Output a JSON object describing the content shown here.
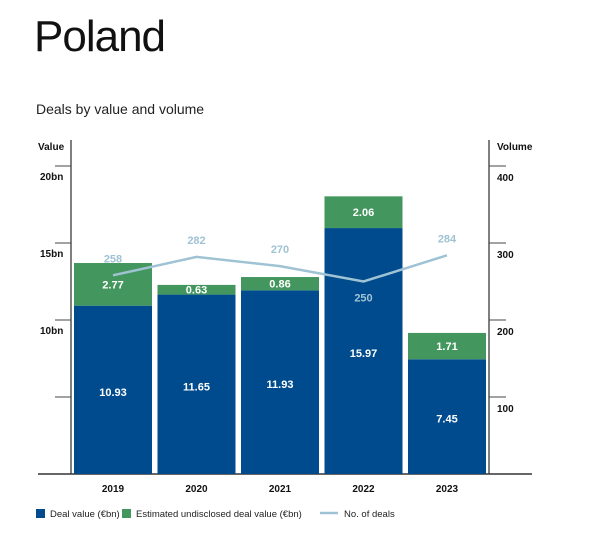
{
  "title": "Poland",
  "chart_data": {
    "type": "bar",
    "subtitle": "Deals by value and volume",
    "categories": [
      "2019",
      "2020",
      "2021",
      "2022",
      "2023"
    ],
    "series": [
      {
        "name": "Deal value (€bn)",
        "kind": "stacked-bar",
        "color": "#004b8d",
        "values": [
          10.93,
          11.65,
          11.93,
          15.97,
          7.45
        ]
      },
      {
        "name": "Estimated undisclosed deal value (€bn)",
        "kind": "stacked-bar",
        "color": "#43965e",
        "values": [
          2.77,
          0.63,
          0.86,
          2.06,
          1.71
        ]
      },
      {
        "name": "No. of deals",
        "kind": "line",
        "axis": "right",
        "color": "#9fc3d4",
        "values": [
          258,
          282,
          270,
          250,
          284
        ]
      }
    ],
    "left_axis": {
      "label": "Value",
      "ylim": [
        0,
        20
      ],
      "ticks": [
        5,
        10,
        15,
        20
      ],
      "tick_labels": [
        "",
        "10bn",
        "15bn",
        "20bn"
      ]
    },
    "right_axis": {
      "label": "Volume",
      "ylim": [
        0,
        400
      ],
      "ticks": [
        100,
        200,
        300,
        400
      ],
      "tick_labels": [
        "100",
        "200",
        "300",
        "400"
      ]
    },
    "legend": "bottom-left",
    "grid": false
  }
}
